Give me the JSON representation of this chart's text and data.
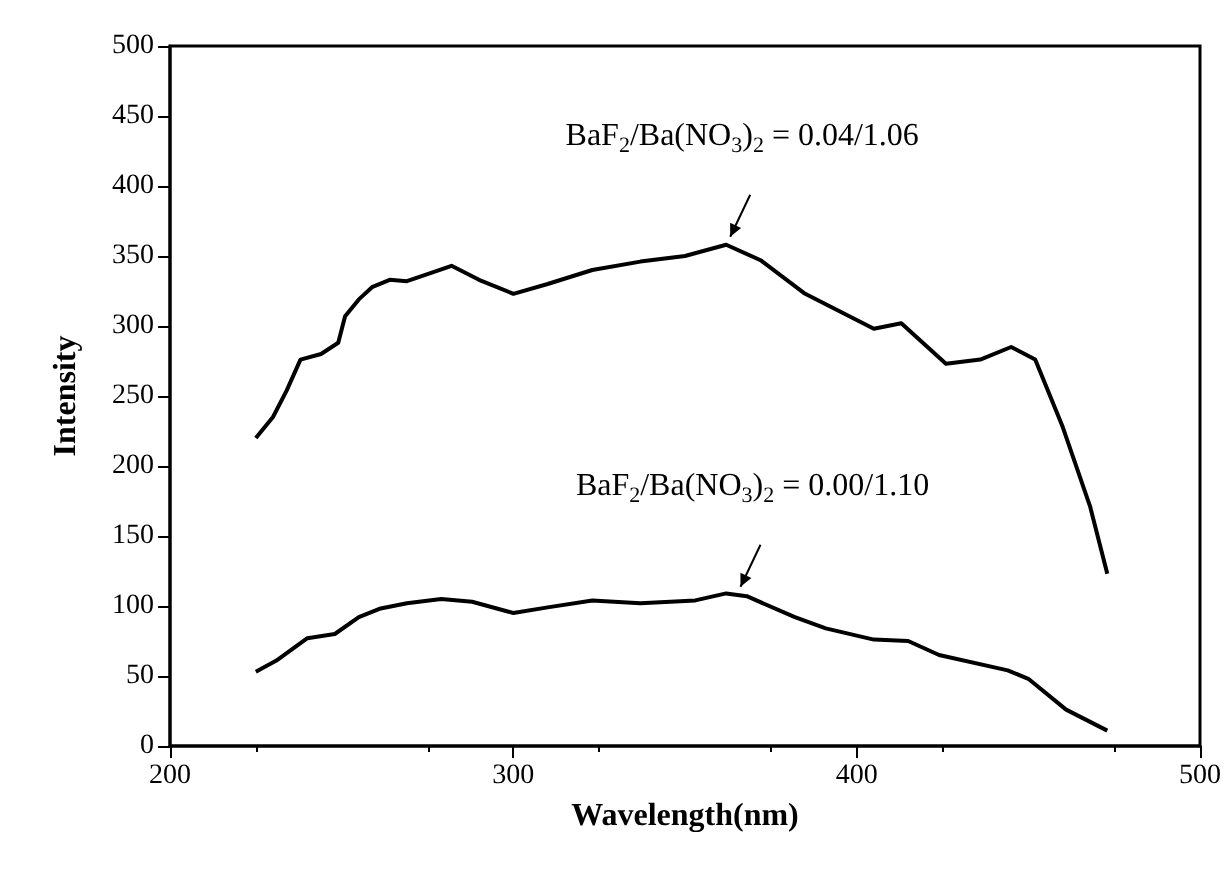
{
  "chart_data": {
    "type": "line",
    "xlabel": "Wavelength(nm)",
    "ylabel": "Intensity",
    "xlim": [
      200,
      500
    ],
    "xticks": [
      200,
      300,
      400,
      500
    ],
    "ylim": [
      0,
      500
    ],
    "yticks": [
      0,
      50,
      100,
      150,
      200,
      250,
      300,
      350,
      400,
      450,
      500
    ],
    "grid": false,
    "marker": "none",
    "line_style": "solid",
    "series": [
      {
        "color": "#000000",
        "x": [
          225,
          230,
          234,
          238,
          244,
          249,
          251,
          255,
          259,
          264,
          269,
          275,
          282,
          290,
          300,
          310,
          323,
          337,
          350,
          362,
          372,
          385,
          405,
          413,
          426,
          436,
          445,
          452,
          460,
          468,
          473
        ],
        "values": [
          220,
          235,
          254,
          276,
          280,
          288,
          307,
          319,
          328,
          333,
          332,
          337,
          343,
          333,
          323,
          330,
          340,
          346,
          350,
          358,
          347,
          323,
          298,
          302,
          273,
          276,
          285,
          276,
          228,
          171,
          123
        ]
      },
      {
        "color": "#000000",
        "x": [
          225,
          231,
          240,
          248,
          255,
          261,
          269,
          279,
          288,
          300,
          310,
          323,
          337,
          353,
          362,
          368,
          382,
          391,
          405,
          415,
          424,
          444,
          450,
          461,
          473
        ],
        "values": [
          53,
          61,
          77,
          80,
          92,
          98,
          102,
          105,
          103,
          95,
          99,
          104,
          102,
          104,
          109,
          107,
          92,
          84,
          76,
          75,
          65,
          54,
          48,
          26,
          11
        ]
      }
    ],
    "annotations": [
      {
        "text": "BaF$_{2}$/Ba(NO$_{3}$)$_{2}$ = 0.04/1.06",
        "x": 362,
        "y": 358
      },
      {
        "text": "BaF$_{2}$/Ba(NO$_{3}$)$_{2}$ = 0.00/1.10",
        "x": 365,
        "y": 108
      }
    ]
  }
}
